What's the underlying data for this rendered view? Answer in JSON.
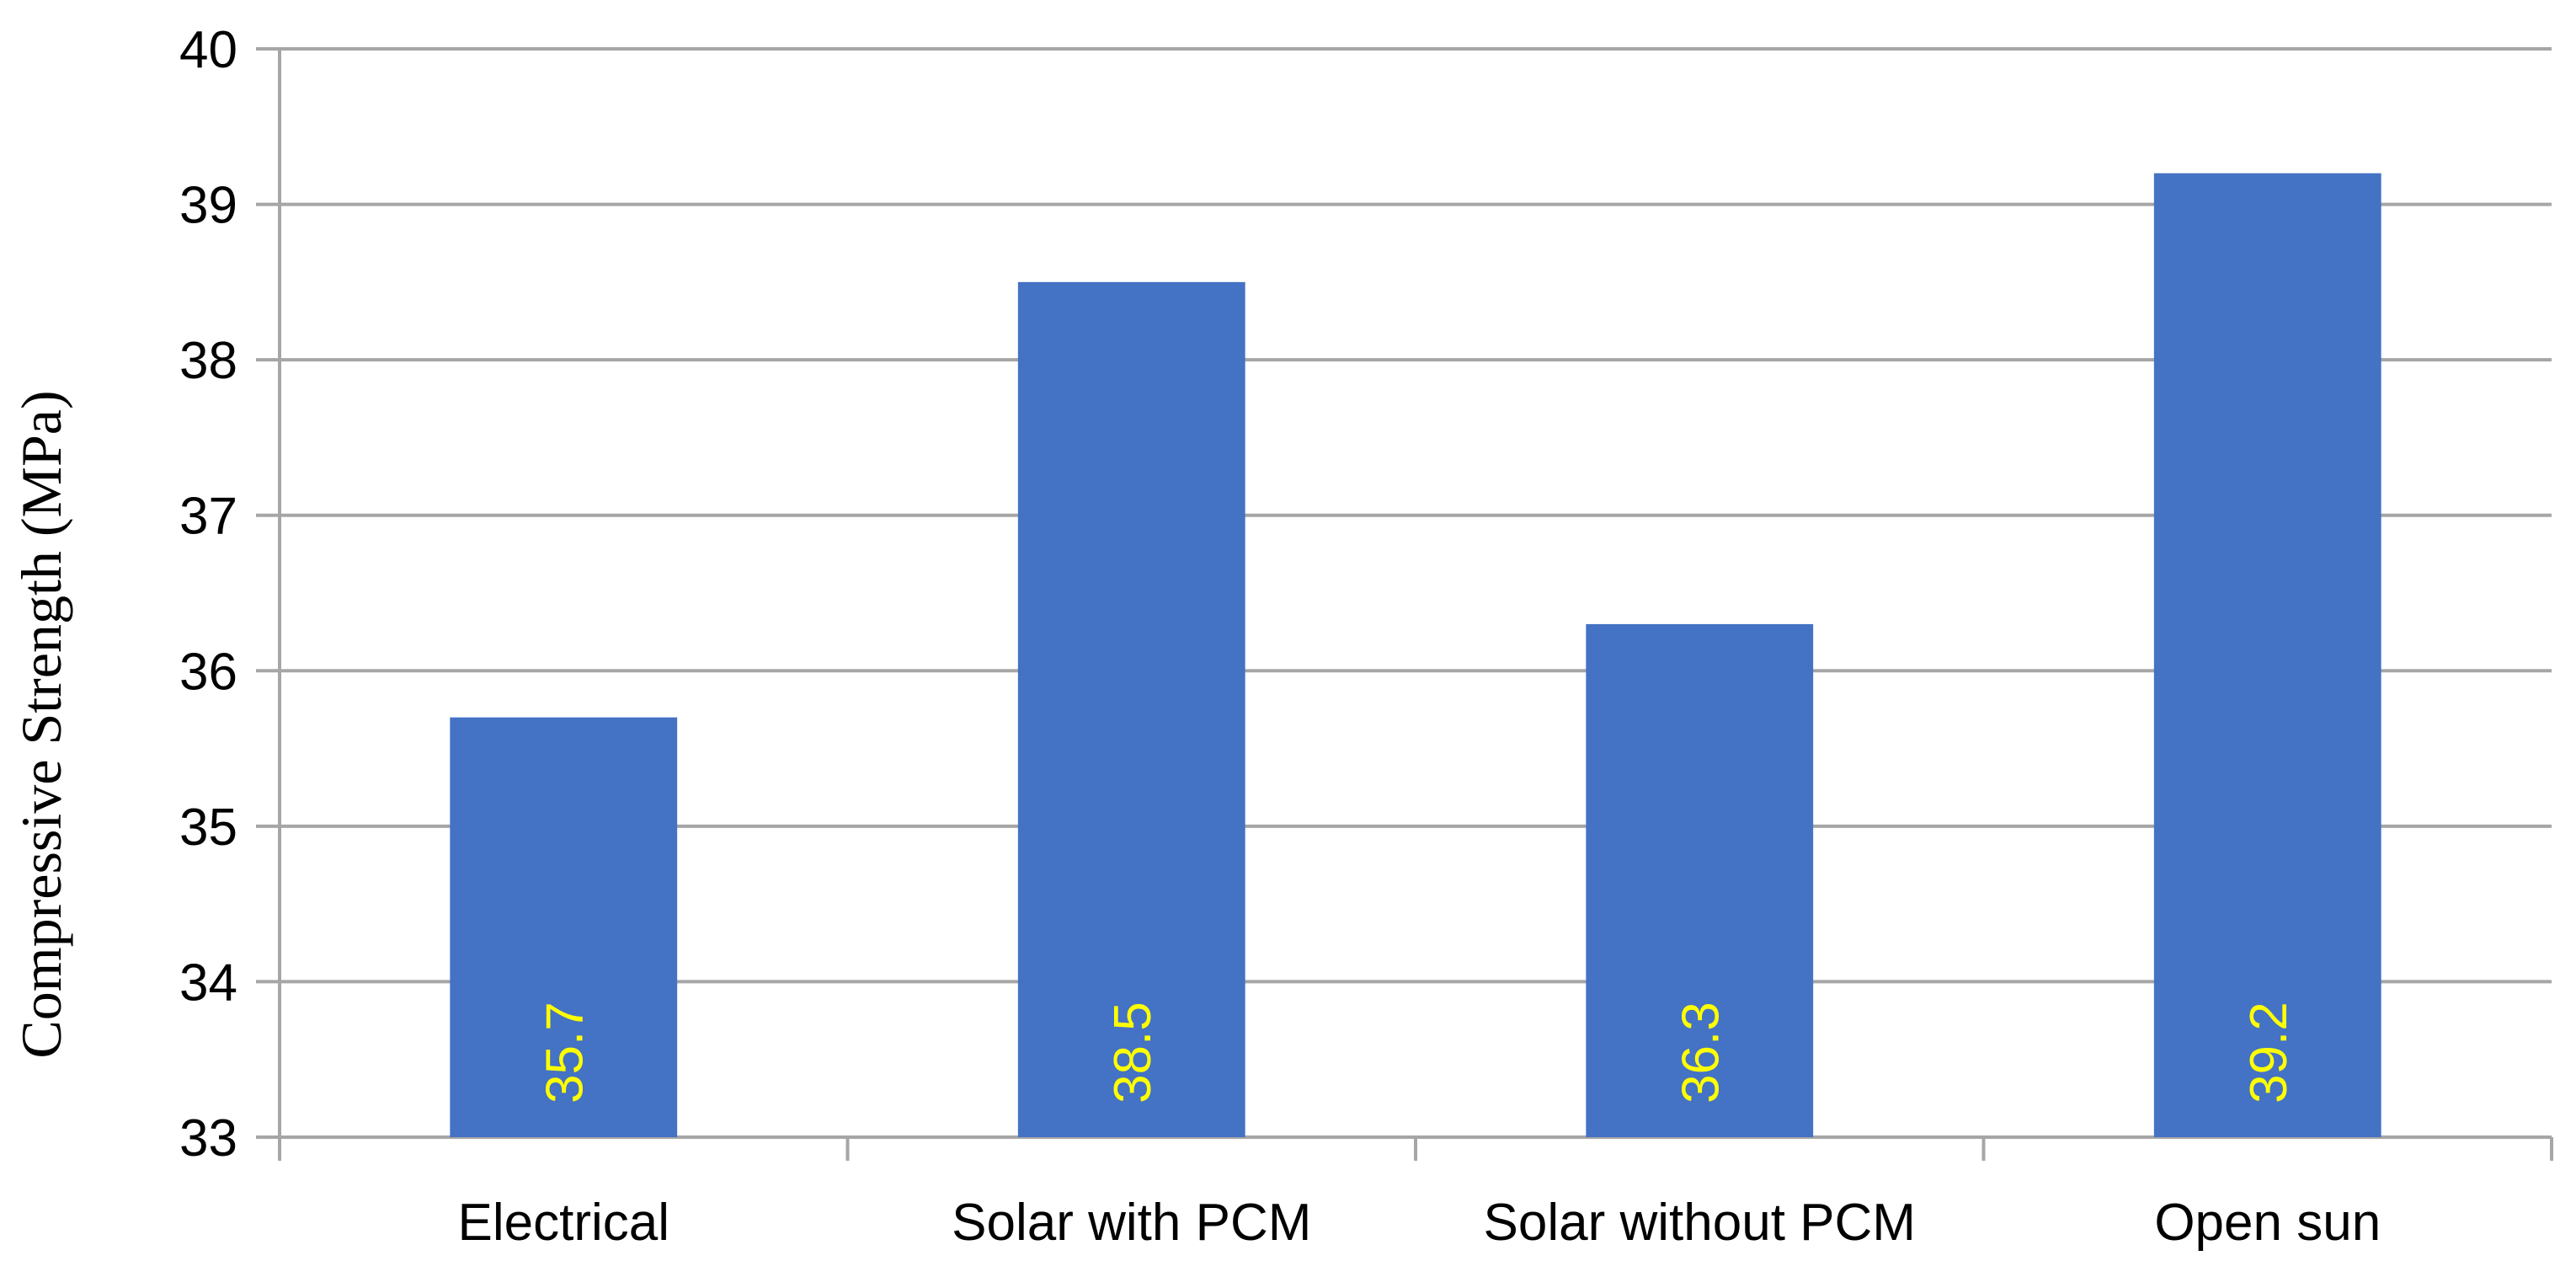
{
  "chart_data": {
    "type": "bar",
    "title": "",
    "xlabel": "",
    "ylabel": "Compressive  Strength (MPa)",
    "categories": [
      "Electrical",
      "Solar with PCM",
      "Solar without PCM",
      "Open sun"
    ],
    "values": [
      35.7,
      38.5,
      36.3,
      39.2
    ],
    "data_labels": [
      "35.7",
      "38.5",
      "36.3",
      "39.2"
    ],
    "yticks": [
      "33",
      "34",
      "35",
      "36",
      "37",
      "38",
      "39",
      "40"
    ],
    "ylim": [
      33,
      40
    ],
    "grid": true,
    "legend": "none",
    "colors": {
      "bar": "#4472C4",
      "grid": "#a6a6a6",
      "data_label": "#FFFF00"
    }
  }
}
